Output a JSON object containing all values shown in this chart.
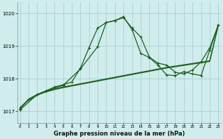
{
  "bg_color": "#d0ecec",
  "grid_color": "#a8d0d0",
  "line_color": "#1a5e1a",
  "title": "Graphe pression niveau de la mer (hPa)",
  "xlim": [
    -0.3,
    23.3
  ],
  "ylim": [
    1016.65,
    1020.35
  ],
  "yticks": [
    1017,
    1018,
    1019,
    1020
  ],
  "xticks": [
    0,
    1,
    2,
    3,
    4,
    5,
    6,
    7,
    8,
    9,
    10,
    11,
    12,
    13,
    14,
    15,
    16,
    17,
    18,
    19,
    20,
    21,
    22,
    23
  ],
  "series": [
    {
      "x": [
        0,
        1,
        2,
        3,
        4,
        5,
        6,
        7,
        8,
        9,
        10,
        11,
        12,
        13,
        14,
        15,
        16,
        17,
        18,
        19,
        20,
        21,
        22,
        23
      ],
      "y": [
        1017.1,
        1017.35,
        1017.5,
        1017.6,
        1017.67,
        1017.73,
        1017.78,
        1017.83,
        1017.88,
        1017.93,
        1017.98,
        1018.03,
        1018.08,
        1018.13,
        1018.18,
        1018.23,
        1018.28,
        1018.33,
        1018.37,
        1018.41,
        1018.45,
        1018.49,
        1018.53,
        1019.65
      ],
      "marker": false,
      "lw": 0.9
    },
    {
      "x": [
        0,
        1,
        2,
        3,
        4,
        5,
        6,
        7,
        8,
        9,
        10,
        11,
        12,
        13,
        14,
        15,
        16,
        17,
        18,
        19,
        20,
        21,
        22,
        23
      ],
      "y": [
        1017.12,
        1017.37,
        1017.52,
        1017.62,
        1017.69,
        1017.75,
        1017.8,
        1017.85,
        1017.9,
        1017.95,
        1018.0,
        1018.05,
        1018.1,
        1018.15,
        1018.2,
        1018.25,
        1018.3,
        1018.35,
        1018.39,
        1018.43,
        1018.47,
        1018.51,
        1018.55,
        1019.65
      ],
      "marker": false,
      "lw": 0.9
    },
    {
      "x": [
        0,
        1,
        2,
        3,
        4,
        5,
        6,
        7,
        8,
        9,
        10,
        11,
        12,
        13,
        14,
        15,
        16,
        17,
        18,
        19,
        20,
        21,
        22,
        23
      ],
      "y": [
        1017.08,
        1017.38,
        1017.52,
        1017.63,
        1017.75,
        1017.82,
        1017.9,
        1018.32,
        1018.95,
        1019.55,
        1019.72,
        1019.78,
        1019.9,
        1019.5,
        1018.78,
        1018.65,
        1018.42,
        1018.12,
        1018.1,
        1018.22,
        1018.15,
        1018.1,
        1018.88,
        1019.65
      ],
      "marker": true,
      "lw": 0.9
    },
    {
      "x": [
        0,
        2,
        3,
        5,
        7,
        9,
        10,
        11,
        12,
        13,
        14,
        15,
        16,
        17,
        18,
        19,
        20,
        21,
        22,
        23
      ],
      "y": [
        1017.05,
        1017.52,
        1017.63,
        1017.8,
        1018.3,
        1018.98,
        1019.72,
        1019.78,
        1019.87,
        1019.55,
        1019.28,
        1018.66,
        1018.48,
        1018.42,
        1018.2,
        1018.15,
        1018.27,
        1018.52,
        1018.95,
        1019.65
      ],
      "marker": true,
      "lw": 0.9
    }
  ]
}
